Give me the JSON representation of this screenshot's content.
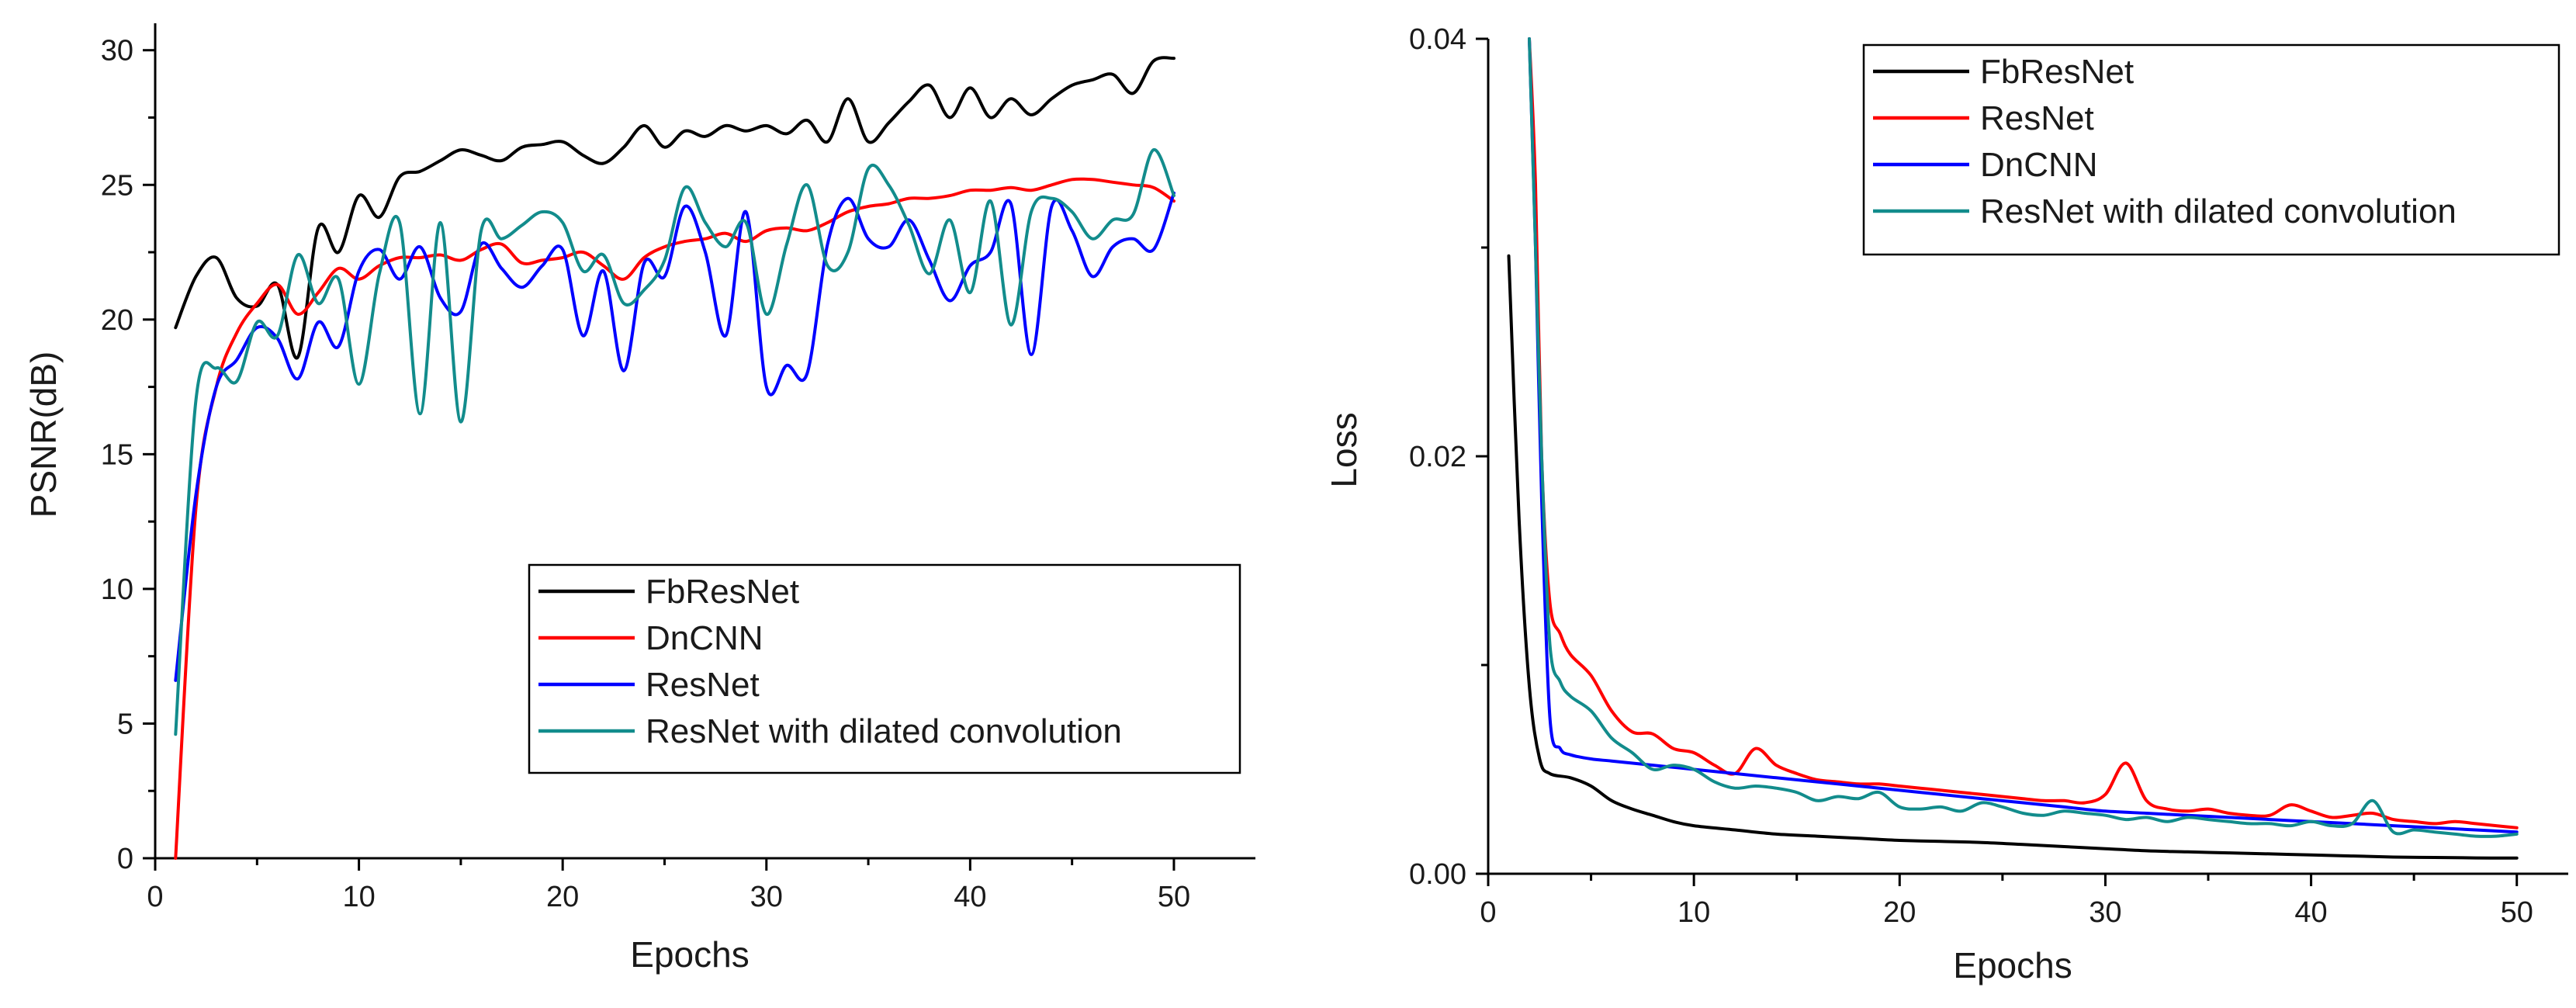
{
  "chart_data": [
    {
      "type": "line",
      "title": "",
      "xlabel": "Epochs",
      "ylabel": "PSNR(dB)",
      "xlim": [
        0,
        54
      ],
      "ylim": [
        0,
        31
      ],
      "xticks": [
        0,
        10,
        20,
        30,
        40,
        50
      ],
      "yticks": [
        0,
        5,
        10,
        15,
        20,
        25,
        30
      ],
      "grid": false,
      "legend_position": "lower-right",
      "series": [
        {
          "name": "FbResNet",
          "color": "#000000",
          "x": [
            1,
            2,
            3,
            4,
            5,
            6,
            7,
            8,
            9,
            10,
            11,
            12,
            13,
            14,
            15,
            16,
            17,
            18,
            19,
            20,
            21,
            22,
            23,
            24,
            25,
            26,
            27,
            28,
            29,
            30,
            31,
            32,
            33,
            34,
            35,
            36,
            37,
            38,
            39,
            40,
            41,
            42,
            43,
            44,
            45,
            46,
            47,
            48,
            49,
            50
          ],
          "y": [
            19.7,
            21.6,
            22.3,
            20.8,
            20.5,
            21.3,
            18.6,
            23.4,
            22.5,
            24.6,
            23.8,
            25.3,
            25.5,
            25.9,
            26.3,
            26.1,
            25.9,
            26.4,
            26.5,
            26.6,
            26.1,
            25.8,
            26.4,
            27.2,
            26.4,
            27.0,
            26.8,
            27.2,
            27.0,
            27.2,
            26.9,
            27.4,
            26.6,
            28.2,
            26.6,
            27.3,
            28.1,
            28.7,
            27.5,
            28.6,
            27.5,
            28.2,
            27.6,
            28.2,
            28.7,
            28.9,
            29.1,
            28.4,
            29.6,
            29.7
          ]
        },
        {
          "name": "DnCNN",
          "color": "#ff0000",
          "x": [
            1,
            2,
            3,
            4,
            5,
            6,
            7,
            8,
            9,
            10,
            11,
            12,
            13,
            14,
            15,
            16,
            17,
            18,
            19,
            20,
            21,
            22,
            23,
            24,
            25,
            26,
            27,
            28,
            29,
            30,
            31,
            32,
            33,
            34,
            35,
            36,
            37,
            38,
            39,
            40,
            41,
            42,
            43,
            44,
            45,
            46,
            47,
            48,
            49,
            50
          ],
          "y": [
            0,
            13.0,
            17.5,
            19.5,
            20.6,
            21.3,
            20.2,
            21.0,
            21.9,
            21.5,
            22.0,
            22.3,
            22.3,
            22.4,
            22.2,
            22.6,
            22.8,
            22.1,
            22.2,
            22.3,
            22.5,
            22.0,
            21.5,
            22.3,
            22.7,
            22.9,
            23.0,
            23.2,
            22.9,
            23.3,
            23.4,
            23.3,
            23.6,
            24.0,
            24.2,
            24.3,
            24.5,
            24.5,
            24.6,
            24.8,
            24.8,
            24.9,
            24.8,
            25.0,
            25.2,
            25.2,
            25.1,
            25.0,
            24.9,
            24.4
          ]
        },
        {
          "name": "ResNet",
          "color": "#0000ff",
          "x": [
            1,
            2,
            3,
            4,
            5,
            6,
            7,
            8,
            9,
            10,
            11,
            12,
            13,
            14,
            15,
            16,
            17,
            18,
            19,
            20,
            21,
            22,
            23,
            24,
            25,
            26,
            27,
            28,
            29,
            30,
            31,
            32,
            33,
            34,
            35,
            36,
            37,
            38,
            39,
            40,
            41,
            42,
            43,
            44,
            45,
            46,
            47,
            48,
            49,
            50
          ],
          "y": [
            6.6,
            13.5,
            17.5,
            18.5,
            19.7,
            19.3,
            17.8,
            19.9,
            19.0,
            21.8,
            22.6,
            21.5,
            22.7,
            20.8,
            20.3,
            22.8,
            21.9,
            21.2,
            22.0,
            22.6,
            19.4,
            21.8,
            18.1,
            22.1,
            21.6,
            24.2,
            22.5,
            19.4,
            24.0,
            17.5,
            18.3,
            18.0,
            22.8,
            24.5,
            23.0,
            22.7,
            23.7,
            22.2,
            20.7,
            22.0,
            22.5,
            24.3,
            18.7,
            24.2,
            23.3,
            21.6,
            22.7,
            23.0,
            22.6,
            24.7
          ]
        },
        {
          "name": "ResNet with dilated convolution",
          "color": "#128c8c",
          "x": [
            1,
            2,
            3,
            4,
            5,
            6,
            7,
            8,
            9,
            10,
            11,
            12,
            13,
            14,
            15,
            16,
            17,
            18,
            19,
            20,
            21,
            22,
            23,
            24,
            25,
            26,
            27,
            28,
            29,
            30,
            31,
            32,
            33,
            34,
            35,
            36,
            37,
            38,
            39,
            40,
            41,
            42,
            43,
            44,
            45,
            46,
            47,
            48,
            49,
            50
          ],
          "y": [
            4.6,
            17.0,
            18.2,
            17.7,
            19.9,
            19.4,
            22.4,
            20.6,
            21.5,
            17.6,
            21.7,
            23.6,
            16.5,
            23.6,
            16.2,
            23.3,
            23.0,
            23.5,
            24.0,
            23.6,
            21.8,
            22.4,
            20.6,
            21.1,
            22.2,
            24.9,
            23.6,
            22.7,
            23.6,
            20.2,
            22.8,
            25.0,
            22.0,
            22.5,
            25.6,
            25.0,
            23.5,
            21.7,
            23.7,
            21.0,
            24.4,
            19.8,
            24.0,
            24.5,
            24.0,
            23.0,
            23.7,
            23.9,
            26.3,
            24.6
          ]
        }
      ],
      "legend": [
        {
          "label": "FbResNet",
          "color": "#000000"
        },
        {
          "label": "DnCNN",
          "color": "#ff0000"
        },
        {
          "label": "ResNet",
          "color": "#0000ff"
        },
        {
          "label": "ResNet with dilated convolution",
          "color": "#128c8c"
        }
      ]
    },
    {
      "type": "line",
      "title": "",
      "xlabel": "Epochs",
      "ylabel": "Loss",
      "xlim": [
        0,
        52.5
      ],
      "ylim": [
        0,
        0.04
      ],
      "xticks": [
        0,
        10,
        20,
        30,
        40,
        50
      ],
      "yticks": [
        0.0,
        0.02,
        0.04
      ],
      "ytick_labels": [
        "0.00",
        "0.02",
        "0.04"
      ],
      "grid": false,
      "legend_position": "top-right",
      "series": [
        {
          "name": "FbResNet",
          "color": "#000000",
          "x": [
            1,
            1.5,
            2,
            2.5,
            3,
            4,
            5,
            6,
            7,
            8,
            9,
            10,
            12,
            14,
            16,
            18,
            20,
            22,
            24,
            26,
            28,
            30,
            32,
            34,
            36,
            38,
            40,
            42,
            44,
            46,
            48,
            50
          ],
          "y": [
            0.0296,
            0.017,
            0.009,
            0.0055,
            0.0048,
            0.0046,
            0.0042,
            0.0035,
            0.0031,
            0.0028,
            0.0025,
            0.0023,
            0.0021,
            0.0019,
            0.0018,
            0.0017,
            0.0016,
            0.00155,
            0.0015,
            0.0014,
            0.0013,
            0.0012,
            0.0011,
            0.00105,
            0.001,
            0.00095,
            0.0009,
            0.00085,
            0.0008,
            0.00078,
            0.00076,
            0.00075
          ]
        },
        {
          "name": "ResNet",
          "color": "#ff0000",
          "x": [
            2,
            2.3,
            2.6,
            3,
            3.5,
            4,
            5,
            6,
            7,
            8,
            9,
            10,
            11,
            12,
            13,
            14,
            15,
            16,
            17,
            18,
            19,
            20,
            21,
            22,
            23,
            24,
            25,
            26,
            27,
            28,
            29,
            30,
            31,
            32,
            33,
            34,
            35,
            36,
            37,
            38,
            39,
            40,
            41,
            42,
            43,
            44,
            45,
            46,
            47,
            48,
            49,
            50
          ],
          "y": [
            0.04,
            0.033,
            0.02,
            0.013,
            0.0115,
            0.0105,
            0.0095,
            0.0078,
            0.0068,
            0.0067,
            0.006,
            0.0058,
            0.0052,
            0.0048,
            0.006,
            0.0052,
            0.0048,
            0.0045,
            0.0044,
            0.0043,
            0.0043,
            0.0042,
            0.0041,
            0.004,
            0.0039,
            0.0038,
            0.0037,
            0.0036,
            0.0035,
            0.0035,
            0.0034,
            0.0038,
            0.0053,
            0.0035,
            0.0031,
            0.003,
            0.0031,
            0.0029,
            0.0028,
            0.0028,
            0.0033,
            0.003,
            0.0027,
            0.0028,
            0.0029,
            0.0026,
            0.0025,
            0.0024,
            0.0025,
            0.0024,
            0.0023,
            0.0022
          ]
        },
        {
          "name": "DnCNN",
          "color": "#0000ff",
          "x": [
            2,
            2.3,
            2.6,
            3,
            3.5,
            4,
            5,
            6,
            8,
            10,
            12,
            14,
            16,
            18,
            20,
            22,
            24,
            26,
            28,
            30,
            32,
            34,
            36,
            38,
            40,
            42,
            44,
            46,
            48,
            50
          ],
          "y": [
            0.04,
            0.03,
            0.018,
            0.0075,
            0.006,
            0.0057,
            0.0055,
            0.0054,
            0.0052,
            0.005,
            0.0048,
            0.0046,
            0.0044,
            0.0042,
            0.004,
            0.0038,
            0.0036,
            0.0034,
            0.0032,
            0.003,
            0.0029,
            0.0028,
            0.0027,
            0.0026,
            0.0025,
            0.0024,
            0.0023,
            0.0022,
            0.0021,
            0.002
          ]
        },
        {
          "name": "ResNet with dilated convolution",
          "color": "#128c8c",
          "x": [
            2,
            2.3,
            2.6,
            3,
            3.5,
            4,
            5,
            6,
            7,
            8,
            9,
            10,
            11,
            12,
            13,
            14,
            15,
            16,
            17,
            18,
            19,
            20,
            21,
            22,
            23,
            24,
            25,
            26,
            27,
            28,
            29,
            30,
            31,
            32,
            33,
            34,
            35,
            36,
            37,
            38,
            39,
            40,
            41,
            42,
            43,
            44,
            45,
            46,
            47,
            48,
            49,
            50
          ],
          "y": [
            0.04,
            0.03,
            0.02,
            0.011,
            0.0092,
            0.0085,
            0.0078,
            0.0065,
            0.0058,
            0.005,
            0.0052,
            0.005,
            0.0044,
            0.0041,
            0.0042,
            0.0041,
            0.0039,
            0.0035,
            0.0037,
            0.0036,
            0.0039,
            0.0032,
            0.0031,
            0.0032,
            0.003,
            0.0034,
            0.0032,
            0.0029,
            0.0028,
            0.003,
            0.0029,
            0.0028,
            0.0026,
            0.0027,
            0.0025,
            0.0027,
            0.0026,
            0.0025,
            0.0024,
            0.0024,
            0.0023,
            0.0025,
            0.0023,
            0.0024,
            0.0035,
            0.002,
            0.0021,
            0.002,
            0.0019,
            0.0018,
            0.0018,
            0.0019
          ]
        }
      ],
      "legend": [
        {
          "label": "FbResNet",
          "color": "#000000"
        },
        {
          "label": "ResNet",
          "color": "#ff0000"
        },
        {
          "label": "DnCNN",
          "color": "#0000ff"
        },
        {
          "label": "ResNet with dilated convolution",
          "color": "#128c8c"
        }
      ]
    }
  ]
}
